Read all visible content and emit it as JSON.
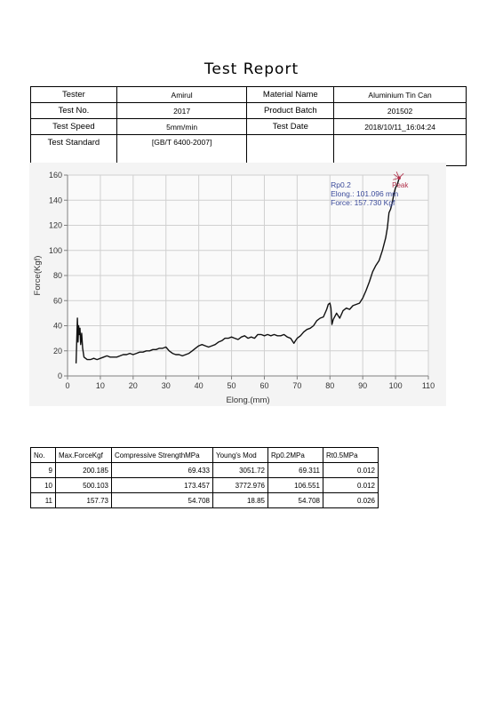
{
  "report": {
    "title": "Test Report"
  },
  "info": {
    "tester_label": "Tester",
    "tester_value": "Amirul",
    "material_label": "Material Name",
    "material_value": "Aluminium Tin Can",
    "testno_label": "Test No.",
    "testno_value": "2017",
    "batch_label": "Product Batch",
    "batch_value": "201502",
    "speed_label": "Test Speed",
    "speed_value": "5mm/min",
    "date_label": "Test Date",
    "date_value": "2018/10/11_16:04:24",
    "standard_label": "Test Standard",
    "standard_value": "[GB/T 6400-2007]"
  },
  "chart_data": {
    "type": "line",
    "xlabel": "Elong.(mm)",
    "ylabel": "Force(Kgf)",
    "xlim": [
      0,
      110
    ],
    "ylim": [
      0,
      160
    ],
    "xticks": [
      0,
      10,
      20,
      30,
      40,
      50,
      60,
      70,
      80,
      90,
      100,
      110
    ],
    "yticks": [
      0,
      20,
      40,
      60,
      80,
      100,
      120,
      140,
      160
    ],
    "grid": true,
    "line_color": "#111111",
    "series": [
      {
        "x": [
          2.6,
          3.0,
          3.2,
          3.4,
          3.6,
          3.8,
          4.0,
          4.3,
          4.6,
          5.0,
          5.5,
          6.0,
          7.0,
          8.0,
          9.0,
          10.0,
          11.0,
          12.0,
          13.0,
          14.0,
          15.0,
          16.0,
          17.0,
          18.0,
          19.0,
          20.0,
          21.0,
          22.0,
          23.0,
          24.0,
          25.0,
          26.0,
          27.0,
          28.0,
          29.0,
          30.0,
          31.0,
          32.0,
          33.0,
          34.0,
          35.0,
          36.0,
          37.0,
          38.0,
          39.0,
          40.0,
          41.0,
          42.0,
          43.0,
          44.0,
          45.0,
          46.0,
          47.0,
          48.0,
          49.0,
          50.0,
          51.0,
          52.0,
          53.0,
          54.0,
          55.0,
          56.0,
          57.0,
          58.0,
          59.0,
          60.0,
          61.0,
          62.0,
          63.0,
          64.0,
          65.0,
          66.0,
          67.0,
          68.0,
          69.0,
          69.5,
          70.0,
          71.0,
          72.0,
          73.0,
          74.0,
          75.0,
          76.0,
          77.0,
          78.0,
          79.0,
          79.5,
          80.0,
          80.3,
          80.6,
          81.0,
          82.0,
          83.0,
          84.0,
          85.0,
          86.0,
          87.0,
          88.0,
          89.0,
          90.0,
          91.0,
          92.0,
          93.0,
          94.0,
          95.0,
          96.0,
          97.0,
          97.5,
          98.0,
          98.5,
          99.0,
          99.5,
          100.0,
          100.5,
          101.1
        ],
        "y": [
          10,
          46,
          27,
          40,
          33,
          38,
          25,
          34,
          22,
          15,
          14,
          13,
          13,
          14,
          13,
          14,
          15,
          16,
          15,
          15,
          15,
          16,
          17,
          17,
          18,
          17,
          18,
          19,
          19,
          20,
          20,
          21,
          21,
          22,
          22,
          23,
          20,
          18,
          17,
          17,
          16,
          17,
          18,
          20,
          22,
          24,
          25,
          24,
          23,
          24,
          25,
          27,
          28,
          30,
          30,
          31,
          30,
          29,
          31,
          32,
          30,
          31,
          30,
          33,
          33,
          32,
          33,
          32,
          33,
          32,
          32,
          33,
          31,
          30,
          26,
          28,
          30,
          32,
          35,
          37,
          38,
          40,
          44,
          46,
          47,
          53,
          57,
          58,
          54,
          41,
          45,
          50,
          46,
          52,
          54,
          53,
          56,
          57,
          58,
          62,
          68,
          75,
          83,
          88,
          92,
          100,
          110,
          118,
          130,
          133,
          138,
          145,
          150,
          152,
          157.73
        ]
      }
    ],
    "annotations": [
      {
        "text": "Rp0.2",
        "x": 101.096,
        "y": 157.73
      },
      {
        "text": "Elong.: 101.096 mm",
        "x": 101.096,
        "y": 157.73
      },
      {
        "text": "Force: 157.730 Kgf",
        "x": 101.096,
        "y": 157.73
      },
      {
        "text": "Peak",
        "x": 101.096,
        "y": 157.73
      }
    ]
  },
  "results": {
    "headers": [
      "No.",
      "Max.ForceKgf",
      "Compressive StrengthMPa",
      "Young's Mod",
      "Rp0.2MPa",
      "Rt0.5MPa"
    ],
    "rows": [
      [
        "9",
        "200.185",
        "69.433",
        "3051.72",
        "69.311",
        "0.012"
      ],
      [
        "10",
        "500.103",
        "173.457",
        "3772.976",
        "106.551",
        "0.012"
      ],
      [
        "11",
        "157.73",
        "54.708",
        "18.85",
        "54.708",
        "0.026"
      ]
    ]
  }
}
